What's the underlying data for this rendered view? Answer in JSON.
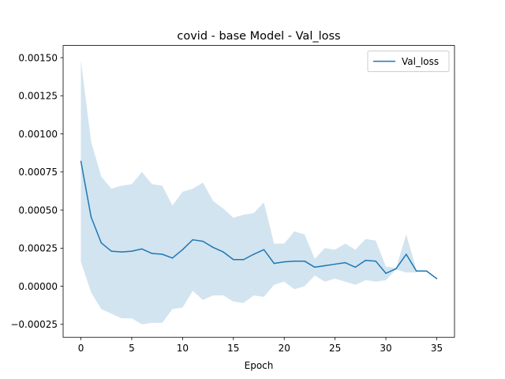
{
  "chart_data": {
    "type": "line",
    "title": "covid - base Model - Val_loss",
    "xlabel": "Epoch",
    "ylabel": "",
    "xlim": [
      -1.75,
      36.75
    ],
    "ylim": [
      -0.000335,
      0.00158
    ],
    "xticks": [
      0,
      5,
      10,
      15,
      20,
      25,
      30,
      35
    ],
    "xtick_labels": [
      "0",
      "5",
      "10",
      "15",
      "20",
      "25",
      "30",
      "35"
    ],
    "yticks": [
      -0.00025,
      0.0,
      0.00025,
      0.0005,
      0.00075,
      0.001,
      0.00125,
      0.0015
    ],
    "ytick_labels": [
      "−0.00025",
      "0.00000",
      "0.00025",
      "0.00050",
      "0.00075",
      "0.00100",
      "0.00125",
      "0.00150"
    ],
    "grid": false,
    "legend_position": "top-right",
    "series": [
      {
        "name": "Val_loss",
        "color": "#1f77b4",
        "band_color": "#1f77b4",
        "x": [
          0,
          1,
          2,
          3,
          4,
          5,
          6,
          7,
          8,
          9,
          10,
          11,
          12,
          13,
          14,
          15,
          16,
          17,
          18,
          19,
          20,
          21,
          22,
          23,
          24,
          25,
          26,
          27,
          28,
          29,
          30,
          31,
          32,
          33,
          34,
          35
        ],
        "values": [
          0.00082,
          0.000455,
          0.000285,
          0.00023,
          0.000225,
          0.00023,
          0.000245,
          0.000215,
          0.00021,
          0.000185,
          0.00024,
          0.000305,
          0.000295,
          0.000255,
          0.000225,
          0.000175,
          0.000175,
          0.00021,
          0.00024,
          0.00015,
          0.00016,
          0.000165,
          0.000165,
          0.000125,
          0.000135,
          0.000145,
          0.000155,
          0.000125,
          0.00017,
          0.000165,
          8.5e-05,
          0.000115,
          0.00021,
          0.0001,
          0.0001,
          5e-05
        ],
        "band_upper": [
          0.00148,
          0.00095,
          0.00072,
          0.00064,
          0.00066,
          0.00067,
          0.00075,
          0.00067,
          0.00066,
          0.00053,
          0.00062,
          0.00064,
          0.00068,
          0.00056,
          0.00051,
          0.00045,
          0.00047,
          0.00048,
          0.00055,
          0.00028,
          0.00028,
          0.00036,
          0.00034,
          0.00018,
          0.00025,
          0.00024,
          0.00028,
          0.00024,
          0.00031,
          0.0003,
          0.00013,
          0.00012,
          0.00034,
          0.00011,
          null,
          null
        ],
        "band_lower": [
          0.00016,
          -4e-05,
          -0.00015,
          -0.00018,
          -0.00021,
          -0.00021,
          -0.00025,
          -0.00024,
          -0.00024,
          -0.00015,
          -0.00014,
          -3e-05,
          -9e-05,
          -6e-05,
          -6e-05,
          -0.0001,
          -0.00011,
          -6e-05,
          -7e-05,
          1e-05,
          3e-05,
          -2e-05,
          0.0,
          7e-05,
          3e-05,
          5e-05,
          3e-05,
          1e-05,
          4e-05,
          3e-05,
          4e-05,
          0.00011,
          9e-05,
          9e-05,
          null,
          null
        ]
      }
    ]
  }
}
